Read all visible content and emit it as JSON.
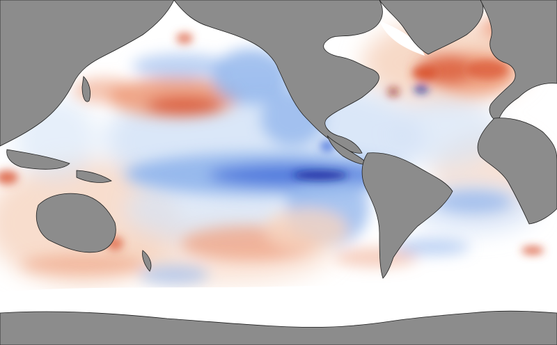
{
  "map": {
    "kind": "sea-surface-temperature-anomaly",
    "projection": "equirectangular",
    "colors": {
      "land": "#8c8c8c",
      "coastline": "#1e1e1e",
      "sea_ice": "#ffffff",
      "neutral": "#ffffff",
      "warm_light": "#f6d5c1",
      "warm_mid": "#ee9e7e",
      "warm_strong": "#d8512f",
      "warm_extreme": "#8e1a10",
      "cool_light": "#d6e4f7",
      "cool_mid": "#93b6ec",
      "cool_strong": "#4a74dd",
      "cool_extreme": "#10239a"
    },
    "features": [
      {
        "name": "north-pacific-warm-anomaly",
        "polarity": "warm"
      },
      {
        "name": "equatorial-pacific-cold-tongue",
        "polarity": "cool"
      },
      {
        "name": "california-current-cool-anomaly",
        "polarity": "cool"
      },
      {
        "name": "north-atlantic-warm-anomaly",
        "polarity": "warm"
      },
      {
        "name": "gulf-stream-warm-eddies",
        "polarity": "warm"
      },
      {
        "name": "south-pacific-warm-anomaly",
        "polarity": "warm"
      },
      {
        "name": "south-atlantic-cool-anomaly",
        "polarity": "cool"
      },
      {
        "name": "southern-ocean-mixed-anomalies",
        "polarity": "mixed"
      }
    ]
  }
}
